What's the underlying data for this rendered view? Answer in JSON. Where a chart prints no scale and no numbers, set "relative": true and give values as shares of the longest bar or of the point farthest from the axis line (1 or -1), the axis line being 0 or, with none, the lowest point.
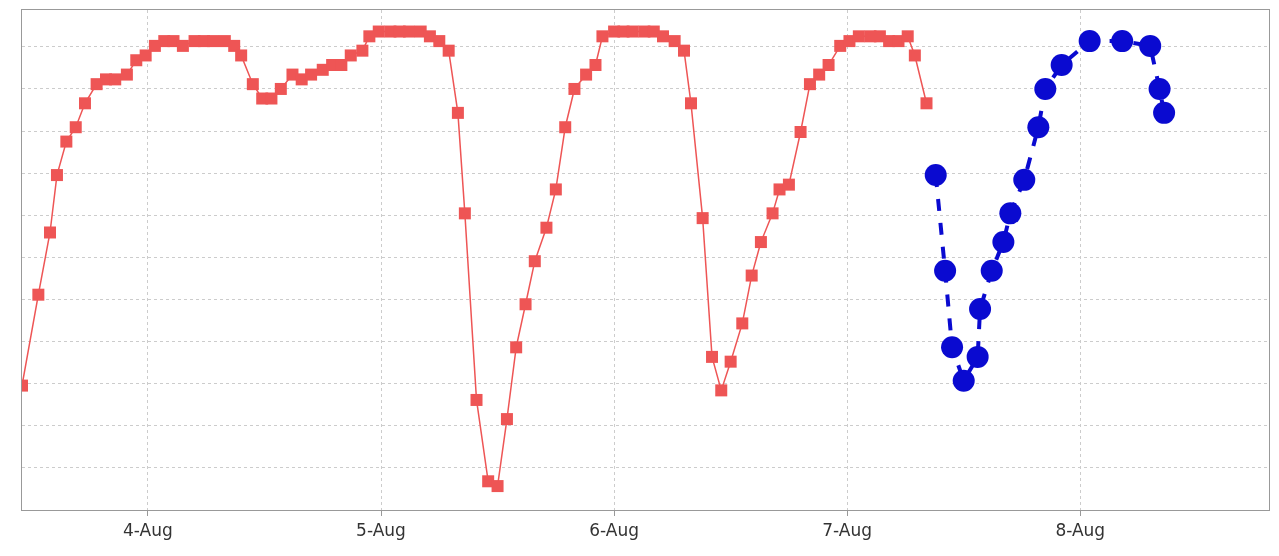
{
  "chart_data": {
    "type": "line",
    "relative": true,
    "grid": true,
    "xlim": [
      "--08-03T11:02",
      "--08-08T19:26"
    ],
    "xticks": [
      {
        "value": "--08-04",
        "label": "4-Aug"
      },
      {
        "value": "--08-05",
        "label": "5-Aug"
      },
      {
        "value": "--08-06",
        "label": "6-Aug"
      },
      {
        "value": "--08-07",
        "label": "7-Aug"
      },
      {
        "value": "--08-08",
        "label": "8-Aug"
      }
    ],
    "series": [
      {
        "color": "#ee5555",
        "marker": "square",
        "line_style": "solid",
        "x": [
          "--08-03T11:02",
          "--08-03T12:43",
          "--08-03T13:55",
          "--08-03T14:38",
          "--08-03T15:36",
          "--08-03T16:34",
          "--08-03T17:31",
          "--08-03T18:43",
          "--08-03T19:41",
          "--08-03T20:38",
          "--08-03T21:50",
          "--08-03T22:48",
          "--08-03T23:46",
          "--08-04T00:43",
          "--08-04T01:41",
          "--08-04T02:38",
          "--08-04T03:36",
          "--08-04T04:48",
          "--08-04T05:46",
          "--08-04T06:43",
          "--08-04T07:55",
          "--08-04T08:53",
          "--08-04T09:36",
          "--08-04T10:48",
          "--08-04T11:46",
          "--08-04T12:43",
          "--08-04T13:41",
          "--08-04T14:53",
          "--08-04T15:50",
          "--08-04T16:48",
          "--08-04T18:00",
          "--08-04T18:58",
          "--08-04T19:55",
          "--08-04T20:53",
          "--08-04T22:05",
          "--08-04T22:48",
          "--08-04T23:46",
          "--08-05T00:58",
          "--08-05T01:55",
          "--08-05T02:53",
          "--08-05T04:05",
          "--08-05T05:02",
          "--08-05T06:00",
          "--08-05T06:58",
          "--08-05T07:55",
          "--08-05T08:38",
          "--08-05T09:50",
          "--08-05T11:02",
          "--08-05T12:00",
          "--08-05T12:58",
          "--08-05T13:55",
          "--08-05T14:53",
          "--08-05T15:50",
          "--08-05T17:02",
          "--08-05T18:00",
          "--08-05T18:58",
          "--08-05T19:55",
          "--08-05T21:07",
          "--08-05T22:05",
          "--08-05T22:48",
          "--08-06T00:00",
          "--08-06T00:58",
          "--08-06T01:55",
          "--08-06T03:07",
          "--08-06T04:05",
          "--08-06T05:02",
          "--08-06T06:14",
          "--08-06T07:12",
          "--08-06T07:55",
          "--08-06T09:07",
          "--08-06T10:05",
          "--08-06T11:02",
          "--08-06T12:00",
          "--08-06T13:12",
          "--08-06T14:10",
          "--08-06T15:07",
          "--08-06T16:19",
          "--08-06T17:02",
          "--08-06T18:00",
          "--08-06T19:12",
          "--08-06T20:10",
          "--08-06T21:07",
          "--08-06T22:05",
          "--08-06T23:17",
          "--08-07T00:14",
          "--08-07T01:12",
          "--08-07T02:24",
          "--08-07T03:22",
          "--08-07T04:19",
          "--08-07T05:17",
          "--08-07T06:14",
          "--08-07T06:58",
          "--08-07T08:10"
        ],
        "values": [
          0.26,
          0.45,
          0.58,
          0.7,
          0.77,
          0.8,
          0.85,
          0.89,
          0.9,
          0.9,
          0.91,
          0.94,
          0.95,
          0.97,
          0.98,
          0.98,
          0.97,
          0.98,
          0.98,
          0.98,
          0.98,
          0.97,
          0.95,
          0.89,
          0.86,
          0.86,
          0.88,
          0.91,
          0.9,
          0.91,
          0.92,
          0.93,
          0.93,
          0.95,
          0.96,
          0.99,
          1,
          1,
          1,
          1,
          1,
          0.99,
          0.98,
          0.96,
          0.83,
          0.62,
          0.23,
          0.06,
          0.05,
          0.19,
          0.34,
          0.43,
          0.52,
          0.59,
          0.67,
          0.8,
          0.88,
          0.91,
          0.93,
          0.99,
          1,
          1,
          1,
          1,
          1,
          0.99,
          0.98,
          0.96,
          0.85,
          0.61,
          0.32,
          0.25,
          0.31,
          0.39,
          0.49,
          0.56,
          0.62,
          0.67,
          0.68,
          0.79,
          0.89,
          0.91,
          0.93,
          0.97,
          0.98,
          0.99,
          0.99,
          0.99,
          0.98,
          0.98,
          0.99,
          0.95,
          0.85
        ]
      },
      {
        "color": "#0a0ad0",
        "marker": "circle",
        "line_style": "dashed",
        "x": [
          "--08-07T09:07",
          "--08-07T10:05",
          "--08-07T10:48",
          "--08-07T12:00",
          "--08-07T13:26",
          "--08-07T13:41",
          "--08-07T14:53",
          "--08-07T16:05",
          "--08-07T16:48",
          "--08-07T18:14",
          "--08-07T19:41",
          "--08-07T20:24",
          "--08-07T22:05",
          "--08-08T00:58",
          "--08-08T04:19",
          "--08-08T07:12",
          "--08-08T08:10",
          "--08-08T08:38"
        ],
        "values": [
          0.7,
          0.5,
          0.34,
          0.27,
          0.32,
          0.42,
          0.5,
          0.56,
          0.62,
          0.69,
          0.8,
          0.88,
          0.93,
          0.98,
          0.98,
          0.97,
          0.88,
          0.83
        ]
      }
    ]
  }
}
